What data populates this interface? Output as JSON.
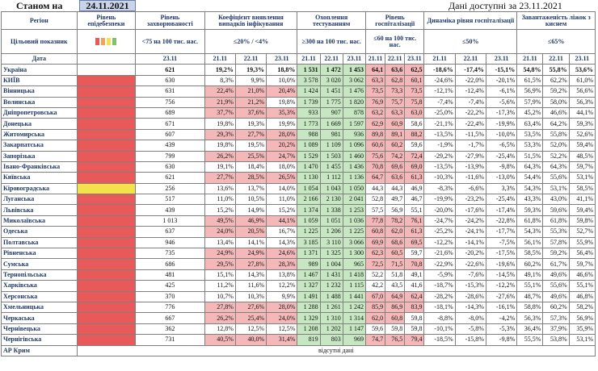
{
  "header": {
    "as_of_label": "Станом на",
    "as_of_date": "24.11.2021",
    "data_available": "Дані доступні за 23.11.2021"
  },
  "columns": {
    "region": "Регіон",
    "safety": "Рівень епідебезпеки",
    "incidence": "Рівень захворюваності",
    "positivity": "Коефіцієнт виявлення випадків інфікування",
    "testing": "Охоплення тестуванням",
    "hosp": "Рівень госпіталізації",
    "dynamics": "Динаміка рівня госпіталізації",
    "oxygen": "Завантаженість ліжок з киснем"
  },
  "targets": {
    "label": "Цільовий показник",
    "incidence": "<75 на 100 тис. нас.",
    "positivity": "≤20% / <4%",
    "testing": "≥300 на 100 тис. нас.",
    "hosp": "≤60 на 100 тис. нас.",
    "dynamics": "≤50%",
    "oxygen": "≤65%"
  },
  "dates_row": {
    "label": "Дата",
    "d1": "23.11",
    "d3": [
      "21.11",
      "22.11",
      "23.11"
    ]
  },
  "rows": [
    {
      "name": "Україна",
      "lvl": "",
      "inc": "621",
      "pos": [
        "19,2%",
        "19,3%",
        "18,8%"
      ],
      "tst": [
        "1 531",
        "1 472",
        "1 453"
      ],
      "hos": [
        "64,1",
        "63,6",
        "62,5"
      ],
      "dyn": [
        "-18,6%",
        "-17,4%",
        "-15,1%"
      ],
      "oxy": [
        "54,8%",
        "55,8%",
        "53,6%"
      ]
    },
    {
      "name": "КИЇВ",
      "lvl": "red",
      "inc": "630",
      "pos": [
        "8,3%",
        "9,9%",
        "10,0%"
      ],
      "tst": [
        "3 578",
        "3 020",
        "3 062"
      ],
      "hos": [
        "63,3",
        "62,8",
        "60,1"
      ],
      "dyn": [
        "-24,6%",
        "-22,0%",
        "-20,1%"
      ],
      "oxy": [
        "61,5%",
        "62,2%",
        "61,0%"
      ]
    },
    {
      "name": "Вінницька",
      "lvl": "red",
      "inc": "631",
      "pos": [
        "22,4%",
        "21,0%",
        "20,4%"
      ],
      "tst": [
        "1 424",
        "1 451",
        "1 476"
      ],
      "hos": [
        "73,5",
        "73,3",
        "73,5"
      ],
      "dyn": [
        "-12,1%",
        "-12,4%",
        "-6,1%"
      ],
      "oxy": [
        "56,9%",
        "59,2%",
        "56,6%"
      ]
    },
    {
      "name": "Волинська",
      "lvl": "red",
      "inc": "756",
      "pos": [
        "21,9%",
        "21,2%",
        "19,8%"
      ],
      "tst": [
        "1 739",
        "1 775",
        "1 820"
      ],
      "hos": [
        "76,9",
        "75,7",
        "75,8"
      ],
      "dyn": [
        "-7,4%",
        "-7,4%",
        "-5,6%"
      ],
      "oxy": [
        "57,9%",
        "58,0%",
        "56,3%"
      ]
    },
    {
      "name": "Дніпропетровська",
      "lvl": "red",
      "inc": "689",
      "pos": [
        "37,7%",
        "37,6%",
        "35,3%"
      ],
      "tst": [
        "933",
        "907",
        "878"
      ],
      "hos": [
        "63,2",
        "63,3",
        "63,0"
      ],
      "dyn": [
        "-25,0%",
        "-22,2%",
        "-17,3%"
      ],
      "oxy": [
        "45,2%",
        "46,6%",
        "44,1%"
      ]
    },
    {
      "name": "Донецька",
      "lvl": "red",
      "inc": "671",
      "pos": [
        "19,8%",
        "19,3%",
        "19,9%"
      ],
      "tst": [
        "1 773",
        "1 669",
        "1 597"
      ],
      "hos": [
        "62,9",
        "60,9",
        "58,6"
      ],
      "dyn": [
        "-21,1%",
        "-22,4%",
        "-19,9%"
      ],
      "oxy": [
        "63,4%",
        "64,2%",
        "59,3%"
      ]
    },
    {
      "name": "Житомирська",
      "lvl": "red",
      "inc": "607",
      "pos": [
        "29,3%",
        "27,7%",
        "28,0%"
      ],
      "tst": [
        "988",
        "981",
        "936"
      ],
      "hos": [
        "89,8",
        "89,1",
        "88,2"
      ],
      "dyn": [
        "-13,5%",
        "-11,5%",
        "-10,0%"
      ],
      "oxy": [
        "53,5%",
        "55,8%",
        "52,6%"
      ]
    },
    {
      "name": "Закарпатська",
      "lvl": "red",
      "inc": "439",
      "pos": [
        "19,8%",
        "19,5%",
        "20,2%"
      ],
      "tst": [
        "1 089",
        "1 109",
        "1 096"
      ],
      "hos": [
        "60,6",
        "60,2",
        "59,6"
      ],
      "dyn": [
        "-1,9%",
        "-1,7%",
        "-6,5%"
      ],
      "oxy": [
        "53,3%",
        "52,0%",
        "59,4%"
      ]
    },
    {
      "name": "Запорізька",
      "lvl": "red",
      "inc": "799",
      "pos": [
        "26,2%",
        "25,5%",
        "24,7%"
      ],
      "tst": [
        "1 529",
        "1 503",
        "1 460"
      ],
      "hos": [
        "75,6",
        "74,2",
        "72,4"
      ],
      "dyn": [
        "-29,2%",
        "-27,9%",
        "-25,4%"
      ],
      "oxy": [
        "51,5%",
        "52,2%",
        "48,5%"
      ]
    },
    {
      "name": "Івано-Франківська",
      "lvl": "red",
      "inc": "630",
      "pos": [
        "19,1%",
        "18,4%",
        "18,0%"
      ],
      "tst": [
        "1 470",
        "1 455",
        "1 436"
      ],
      "hos": [
        "70,8",
        "69,6",
        "69,0"
      ],
      "dyn": [
        "-13,5%",
        "-13,9%",
        "-9,8%"
      ],
      "oxy": [
        "64,3%",
        "64,3%",
        "59,7%"
      ]
    },
    {
      "name": "Київська",
      "lvl": "red",
      "inc": "621",
      "pos": [
        "27,7%",
        "28,5%",
        "26,5%"
      ],
      "tst": [
        "1 130",
        "1 112",
        "1 136"
      ],
      "hos": [
        "64,7",
        "63,6",
        "61,3"
      ],
      "dyn": [
        "-10,3%",
        "-11,6%",
        "-13,0%"
      ],
      "oxy": [
        "54,4%",
        "55,6%",
        "53,1%"
      ]
    },
    {
      "name": "Кіровоградська",
      "lvl": "yel",
      "inc": "256",
      "pos": [
        "13,6%",
        "13,7%",
        "14,0%"
      ],
      "tst": [
        "1 054",
        "1 043",
        "1 050"
      ],
      "hos": [
        "44,3",
        "44,3",
        "46,9"
      ],
      "dyn": [
        "-8,3%",
        "-6,6%",
        "3,3%"
      ],
      "oxy": [
        "54,3%",
        "53,1%",
        "58,5%"
      ]
    },
    {
      "name": "Луганська",
      "lvl": "red",
      "inc": "517",
      "pos": [
        "11,0%",
        "10,5%",
        "11,0%"
      ],
      "tst": [
        "2 166",
        "2 130",
        "2 041"
      ],
      "hos": [
        "52,8",
        "49,7",
        "46,7"
      ],
      "dyn": [
        "-19,9%",
        "-23,2%",
        "-25,4%"
      ],
      "oxy": [
        "43,3%",
        "43,0%",
        "41,1%"
      ]
    },
    {
      "name": "Львівська",
      "lvl": "red",
      "inc": "439",
      "pos": [
        "15,2%",
        "14,9%",
        "15,2%"
      ],
      "tst": [
        "1 374",
        "1 338",
        "1 253"
      ],
      "hos": [
        "57,5",
        "56,9",
        "55,1"
      ],
      "dyn": [
        "-20,0%",
        "-17,6%",
        "-17,4%"
      ],
      "oxy": [
        "59,3%",
        "59,6%",
        "59,4%"
      ]
    },
    {
      "name": "Миколаївська",
      "lvl": "red",
      "inc": "1 013",
      "pos": [
        "49,5%",
        "46,9%",
        "44,1%"
      ],
      "tst": [
        "1 059",
        "1 051",
        "1 036"
      ],
      "hos": [
        "77,8",
        "78,2",
        "76,1"
      ],
      "dyn": [
        "-24,7%",
        "-24,2%",
        "-22,8%"
      ],
      "oxy": [
        "61,8%",
        "61,8%",
        "59,8%"
      ]
    },
    {
      "name": "Одеська",
      "lvl": "red",
      "inc": "637",
      "pos": [
        "24,0%",
        "20,5%",
        "16,7%"
      ],
      "tst": [
        "1 225",
        "1 206",
        "1 225"
      ],
      "hos": [
        "60,8",
        "62,0",
        "61,3"
      ],
      "dyn": [
        "-25,2%",
        "-24,1%",
        "-17,7%"
      ],
      "oxy": [
        "54,3%",
        "55,3%",
        "52,7%"
      ]
    },
    {
      "name": "Полтавська",
      "lvl": "red",
      "inc": "946",
      "pos": [
        "13,4%",
        "14,1%",
        "14,3%"
      ],
      "tst": [
        "3 185",
        "3 110",
        "3 066"
      ],
      "hos": [
        "69,9",
        "68,6",
        "69,5"
      ],
      "dyn": [
        "-12,2%",
        "-14,1%",
        "-7,5%"
      ],
      "oxy": [
        "56,1%",
        "57,8%",
        "55,9%"
      ]
    },
    {
      "name": "Рівненська",
      "lvl": "red",
      "inc": "735",
      "pos": [
        "24,9%",
        "24,9%",
        "24,6%"
      ],
      "tst": [
        "1 371",
        "1 325",
        "1 300"
      ],
      "hos": [
        "62,3",
        "60,5",
        "59,7"
      ],
      "dyn": [
        "-21,6%",
        "-20,2%",
        "-17,5%"
      ],
      "oxy": [
        "58,5%",
        "59,2%",
        "56,4%"
      ]
    },
    {
      "name": "Сумська",
      "lvl": "red",
      "inc": "686",
      "pos": [
        "29,5%",
        "27,8%",
        "28,3%"
      ],
      "tst": [
        "989",
        "1 004",
        "965"
      ],
      "hos": [
        "72,5",
        "71,5",
        "70,8"
      ],
      "dyn": [
        "-22,9%",
        "-22,6%",
        "-19,6%"
      ],
      "oxy": [
        "60,2%",
        "61,7%",
        "59,7%"
      ]
    },
    {
      "name": "Тернопільська",
      "lvl": "red",
      "inc": "481",
      "pos": [
        "15,1%",
        "14,3%",
        "13,8%"
      ],
      "tst": [
        "1 467",
        "1 431",
        "1 418"
      ],
      "hos": [
        "52,2",
        "51,8",
        "49,1"
      ],
      "dyn": [
        "-5,9%",
        "-7,6%",
        "-14,5%"
      ],
      "oxy": [
        "49,1%",
        "49,6%",
        "46,6%"
      ]
    },
    {
      "name": "Харківська",
      "lvl": "red",
      "inc": "425",
      "pos": [
        "11,2%",
        "11,6%",
        "12,2%"
      ],
      "tst": [
        "1 327",
        "1 232",
        "1 115"
      ],
      "hos": [
        "42,2",
        "43,5",
        "41,6"
      ],
      "dyn": [
        "-18,7%",
        "-15,3%",
        "-12,2%"
      ],
      "oxy": [
        "55,1%",
        "55,6%",
        "55,1%"
      ]
    },
    {
      "name": "Херсонська",
      "lvl": "red",
      "inc": "370",
      "pos": [
        "10,7%",
        "10,3%",
        "9,9%"
      ],
      "tst": [
        "1 491",
        "1 488",
        "1 441"
      ],
      "hos": [
        "67,0",
        "64,9",
        "62,4"
      ],
      "dyn": [
        "-28,2%",
        "-28,6%",
        "-27,6%"
      ],
      "oxy": [
        "48,7%",
        "49,6%",
        "46,8%"
      ]
    },
    {
      "name": "Хмельницька",
      "lvl": "red",
      "inc": "776",
      "pos": [
        "27,8%",
        "27,6%",
        "28,0%"
      ],
      "tst": [
        "1 288",
        "1 261",
        "1 242"
      ],
      "hos": [
        "85,9",
        "86,9",
        "83,9"
      ],
      "dyn": [
        "-18,1%",
        "-14,3%",
        "-16,1%"
      ],
      "oxy": [
        "58,8%",
        "60,2%",
        "58,2%"
      ]
    },
    {
      "name": "Черкаська",
      "lvl": "red",
      "inc": "667",
      "pos": [
        "26,2%",
        "25,4%",
        "24,0%"
      ],
      "tst": [
        "1 329",
        "1 310",
        "1 314"
      ],
      "hos": [
        "62,0",
        "60,8",
        "59,8"
      ],
      "dyn": [
        "-8,8%",
        "-8,0%",
        "-4,2%"
      ],
      "oxy": [
        "56,3%",
        "57,3%",
        "56,9%"
      ]
    },
    {
      "name": "Чернівецька",
      "lvl": "red",
      "inc": "362",
      "pos": [
        "12,8%",
        "12,5%",
        "12,5%"
      ],
      "tst": [
        "1 208",
        "1 202",
        "1 147"
      ],
      "hos": [
        "59,6",
        "59,8",
        "59,8"
      ],
      "dyn": [
        "-10,1%",
        "-5,8%",
        "-5,3%"
      ],
      "oxy": [
        "36,4%",
        "37,9%",
        "35,9%"
      ]
    },
    {
      "name": "Чернігівська",
      "lvl": "red",
      "inc": "731",
      "pos": [
        "40,5%",
        "40,0%",
        "31,4%"
      ],
      "tst": [
        "819",
        "803",
        "969"
      ],
      "hos": [
        "74,7",
        "76,5",
        "79,4"
      ],
      "dyn": [
        "-18,5%",
        "-15,8%",
        "-9,8%"
      ],
      "oxy": [
        "55,5%",
        "53,8%",
        "53,1%"
      ]
    }
  ],
  "crimea": {
    "name": "АР Крим",
    "note": "відсутні дані"
  }
}
